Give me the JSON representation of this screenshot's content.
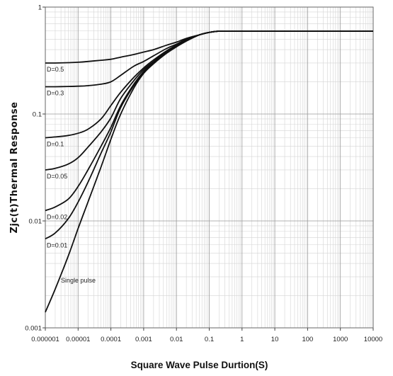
{
  "chart_data": {
    "type": "line",
    "title": "",
    "xlabel": "Square Wave Pulse Durtion(S)",
    "ylabel": "Zjc(t)Thermal Response",
    "xscale": "log",
    "yscale": "log",
    "xlim": [
      1e-06,
      10000
    ],
    "ylim": [
      0.001,
      1
    ],
    "grid": true,
    "x_tick_labels": [
      "0.000001",
      "0.00001",
      "0.0001",
      "0.001",
      "0.01",
      "0.1",
      "1",
      "10",
      "100",
      "1000",
      "10000"
    ],
    "y_tick_labels": [
      "0.001",
      "0.01",
      "0.1",
      "1"
    ],
    "x": [
      1e-06,
      2e-06,
      5e-06,
      1e-05,
      2e-05,
      5e-05,
      0.0001,
      0.0002,
      0.0005,
      0.001,
      0.002,
      0.005,
      0.01,
      0.02,
      0.05,
      0.1,
      0.2,
      0.5,
      1,
      10,
      100,
      1000,
      10000
    ],
    "series": [
      {
        "name": "D=0.5",
        "values": [
          0.3,
          0.3,
          0.302,
          0.305,
          0.31,
          0.318,
          0.325,
          0.34,
          0.36,
          0.38,
          0.4,
          0.44,
          0.47,
          0.51,
          0.55,
          0.58,
          0.595,
          0.595,
          0.595,
          0.595,
          0.595,
          0.595,
          0.595
        ]
      },
      {
        "name": "D=0.3",
        "values": [
          0.18,
          0.18,
          0.181,
          0.182,
          0.184,
          0.19,
          0.2,
          0.23,
          0.28,
          0.31,
          0.35,
          0.41,
          0.45,
          0.5,
          0.55,
          0.58,
          0.595,
          0.595,
          0.595,
          0.595,
          0.595,
          0.595,
          0.595
        ]
      },
      {
        "name": "D=0.1",
        "values": [
          0.06,
          0.061,
          0.063,
          0.066,
          0.072,
          0.09,
          0.12,
          0.16,
          0.22,
          0.27,
          0.32,
          0.39,
          0.44,
          0.49,
          0.55,
          0.58,
          0.595,
          0.595,
          0.595,
          0.595,
          0.595,
          0.595,
          0.595
        ]
      },
      {
        "name": "D=0.05",
        "values": [
          0.03,
          0.031,
          0.034,
          0.039,
          0.049,
          0.068,
          0.092,
          0.14,
          0.205,
          0.26,
          0.31,
          0.385,
          0.435,
          0.49,
          0.55,
          0.58,
          0.595,
          0.595,
          0.595,
          0.595,
          0.595,
          0.595,
          0.595
        ]
      },
      {
        "name": "D=0.02",
        "values": [
          0.0125,
          0.0135,
          0.016,
          0.021,
          0.03,
          0.05,
          0.075,
          0.12,
          0.19,
          0.25,
          0.305,
          0.38,
          0.43,
          0.485,
          0.55,
          0.58,
          0.595,
          0.595,
          0.595,
          0.595,
          0.595,
          0.595,
          0.595
        ]
      },
      {
        "name": "D=0.01",
        "values": [
          0.0068,
          0.0077,
          0.0105,
          0.015,
          0.023,
          0.043,
          0.068,
          0.115,
          0.185,
          0.245,
          0.3,
          0.375,
          0.43,
          0.485,
          0.55,
          0.58,
          0.595,
          0.595,
          0.595,
          0.595,
          0.595,
          0.595,
          0.595
        ]
      },
      {
        "name": "Single pulse",
        "values": [
          0.0014,
          0.0023,
          0.0047,
          0.0085,
          0.015,
          0.032,
          0.058,
          0.1,
          0.175,
          0.24,
          0.295,
          0.37,
          0.425,
          0.48,
          0.55,
          0.58,
          0.595,
          0.595,
          0.595,
          0.595,
          0.595,
          0.595,
          0.595
        ]
      }
    ]
  }
}
